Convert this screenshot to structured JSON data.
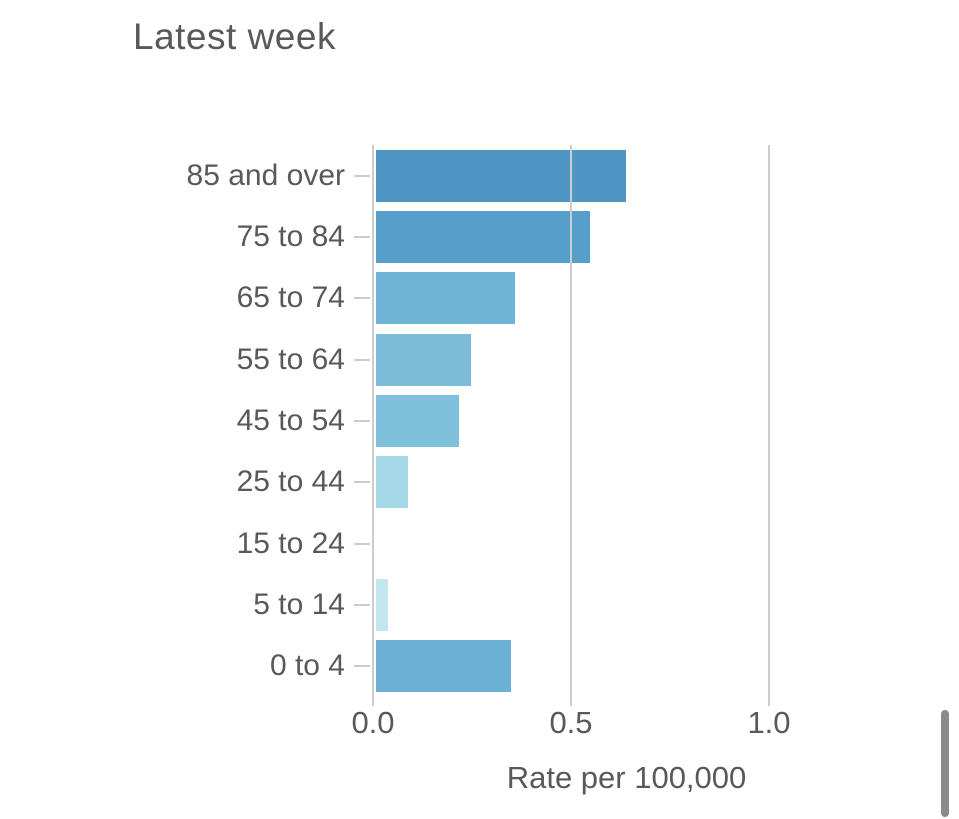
{
  "title": "Latest week",
  "chart_data": {
    "type": "bar",
    "orientation": "horizontal",
    "title": "Latest week",
    "xlabel": "Rate per 100,000",
    "ylabel": "",
    "categories": [
      "85 and over",
      "75 to 84",
      "65 to 74",
      "55 to 64",
      "45 to 54",
      "25 to 44",
      "15 to 24",
      "5 to 14",
      "0 to 4"
    ],
    "values": [
      0.63,
      0.54,
      0.35,
      0.24,
      0.21,
      0.08,
      0.0,
      0.03,
      0.34
    ],
    "bar_colors": [
      "#4f96c5",
      "#569fca",
      "#6fb3d6",
      "#7dbcd9",
      "#7fc0dc",
      "#a6d9e7",
      null,
      "#c3e7f0",
      "#6cb1d5"
    ],
    "x_ticks": [
      "0.0",
      "0.5",
      "1.0"
    ],
    "x_tick_values": [
      0.0,
      0.5,
      1.0
    ],
    "xlim": [
      0.0,
      1.28
    ],
    "grid": "vertical",
    "gridline_color": "#cccccc",
    "text_color": "#58595b"
  },
  "scrollbar": {
    "orientation": "vertical",
    "thumb_color": "#8a8a8a"
  }
}
